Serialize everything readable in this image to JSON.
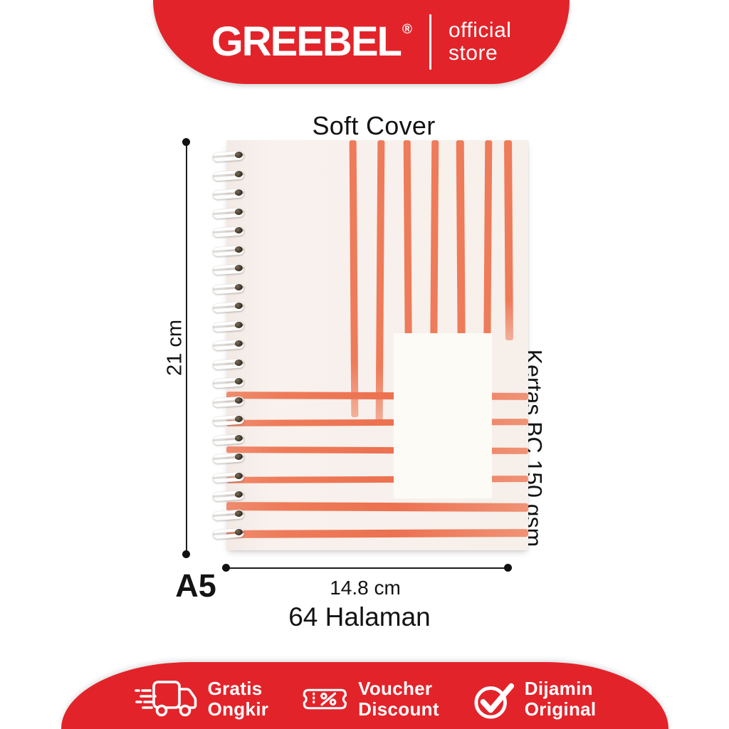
{
  "header": {
    "brand": "GREEBEL",
    "registered_mark": "®",
    "store_line1": "official",
    "store_line2": "store"
  },
  "product": {
    "cover_type_label": "Soft Cover",
    "height_label": "21 cm",
    "width_label": "14.8 cm",
    "size_label": "A5",
    "pages_label": "64 Halaman",
    "paper_label": "Kertas BC 150 gsm"
  },
  "footer": {
    "features": [
      {
        "icon": "shipping-truck-icon",
        "line1": "Gratis",
        "line2": "Ongkir"
      },
      {
        "icon": "discount-voucher-icon",
        "line1": "Voucher",
        "line2": "Discount"
      },
      {
        "icon": "original-check-icon",
        "line1": "Dijamin",
        "line2": "Original"
      }
    ]
  },
  "colors": {
    "banner_red": "#e3232a",
    "cover_background": "#f7efea",
    "stripe_coral": "#ee7b59",
    "label_white": "#fdfbf6",
    "text_ink": "#131313"
  }
}
